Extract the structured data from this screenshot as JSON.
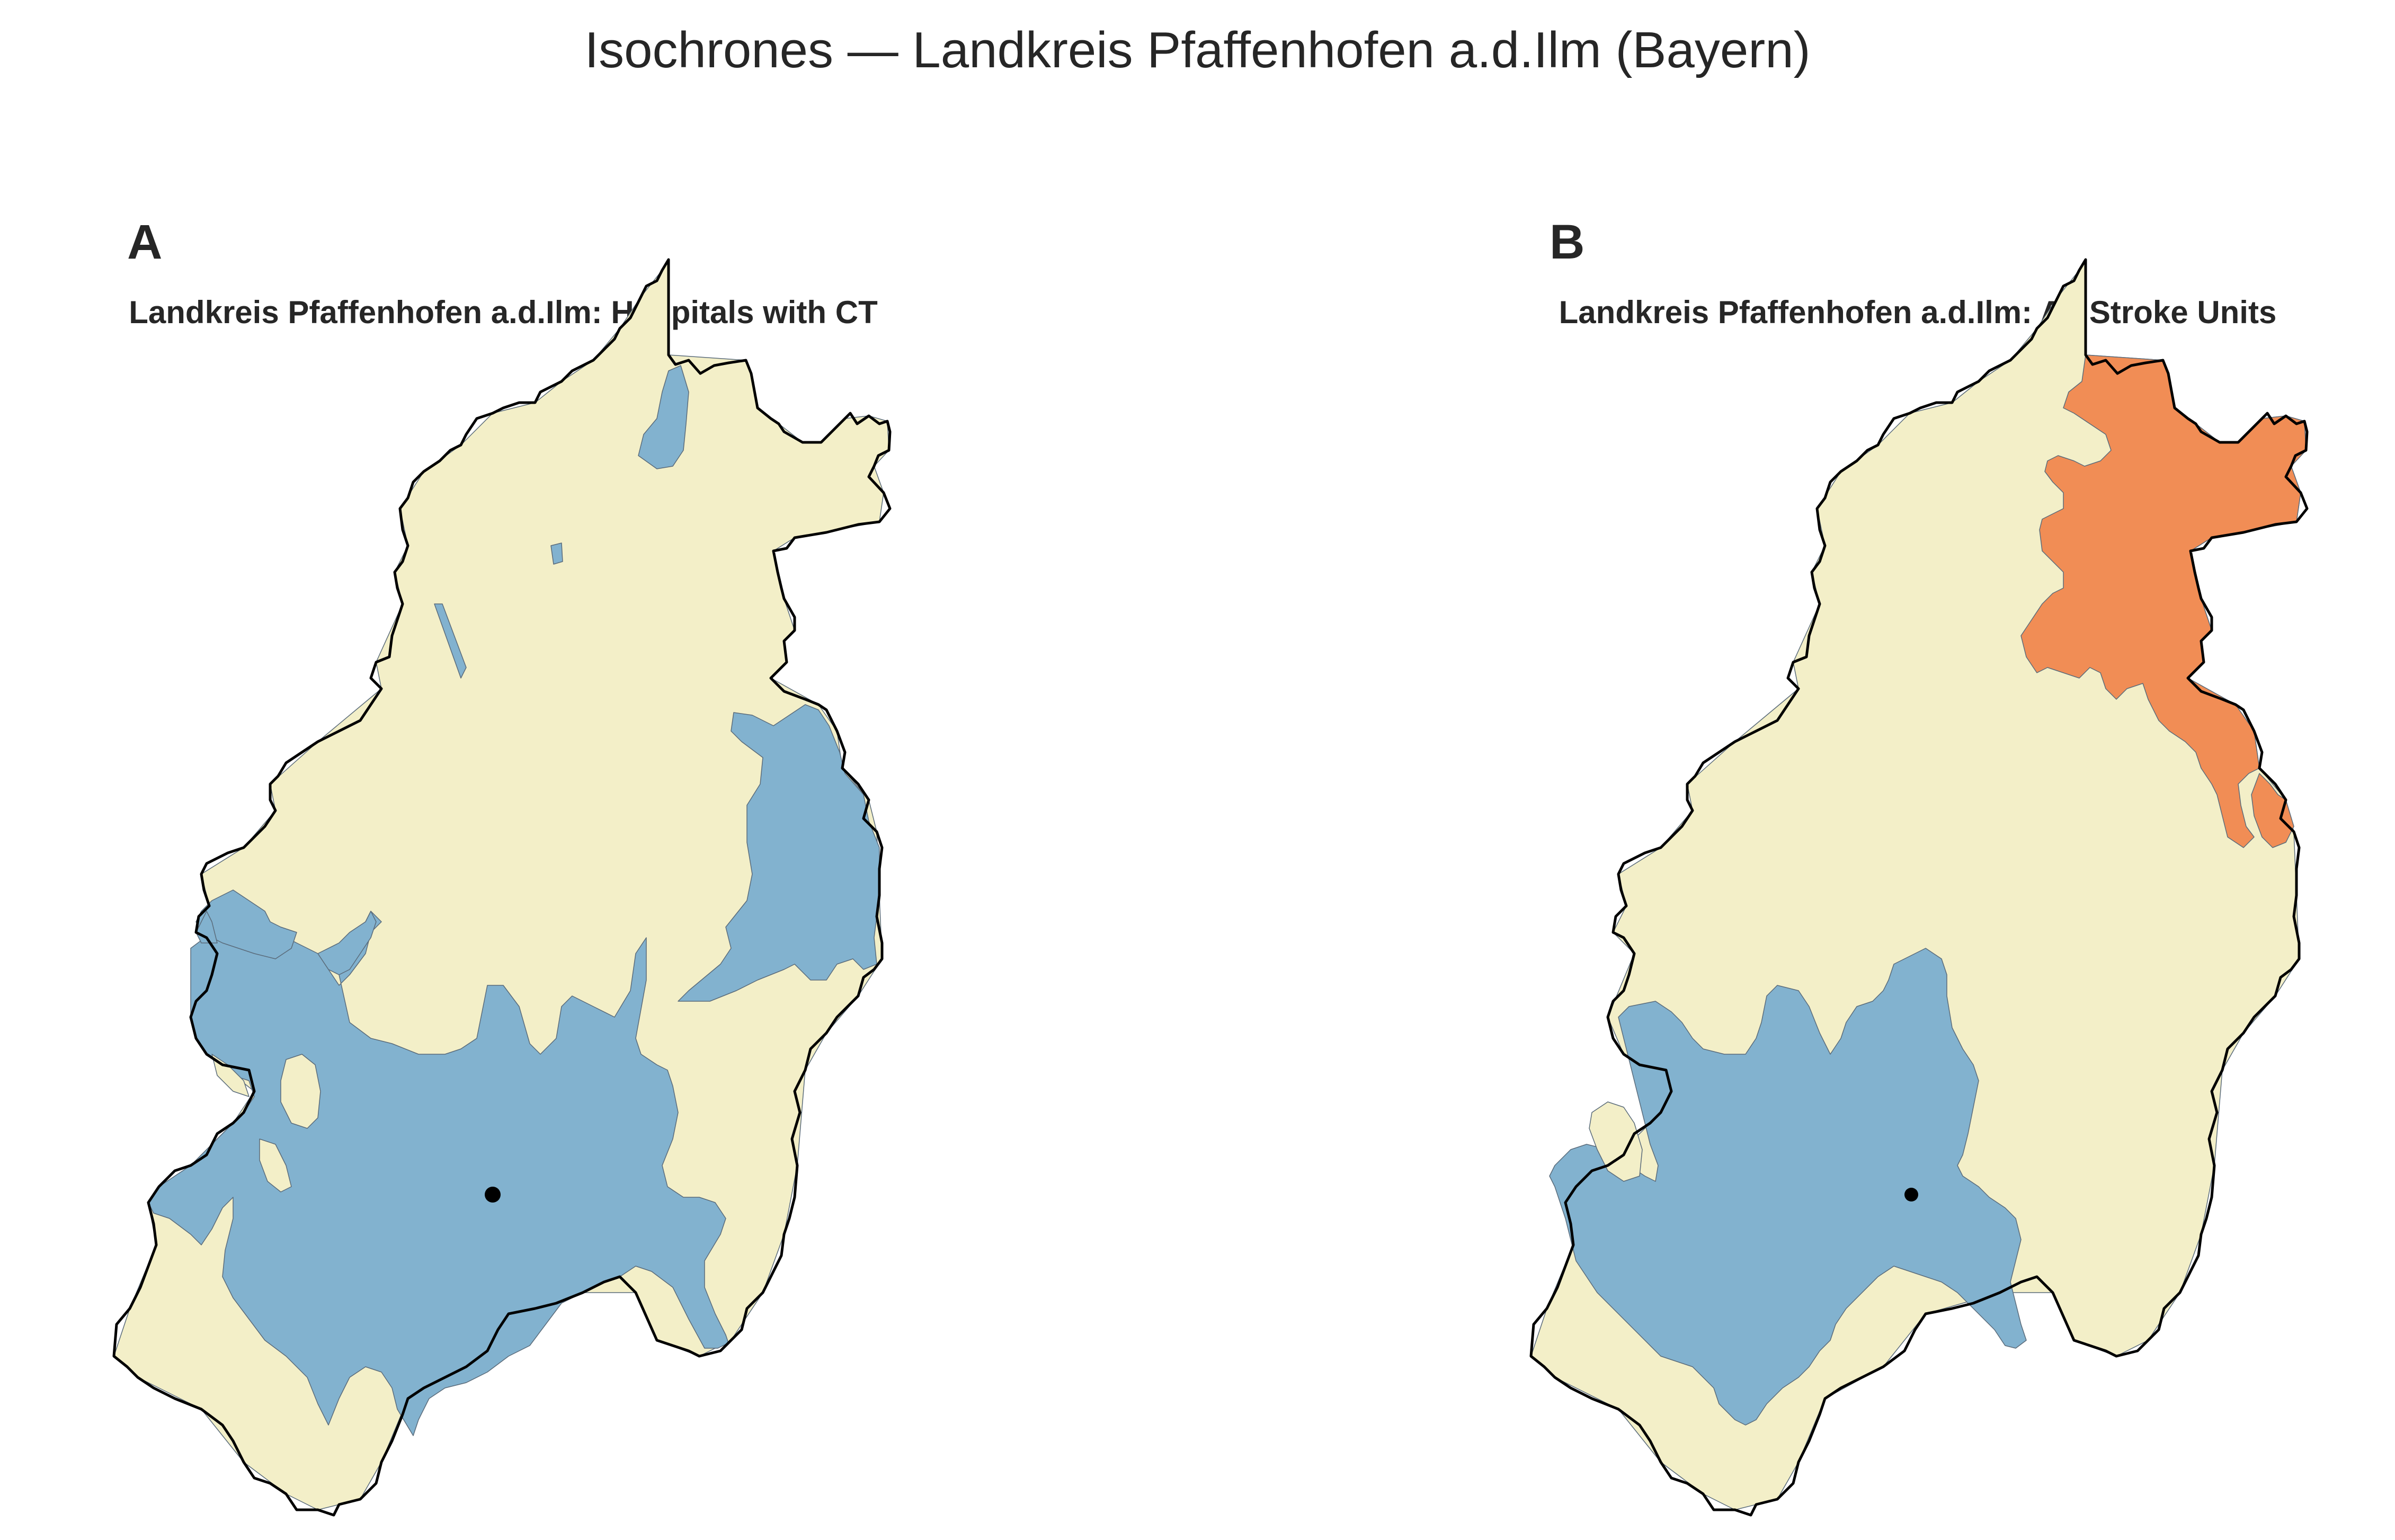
{
  "title": "Isochrones — Landkreis Pfaffenhofen a.d.Ilm (Bayern)",
  "colors": {
    "background_region": "#f3efc8",
    "reachable_blue": "#82b2cf",
    "reachable_orange": "#f18d55",
    "boundary": "#000000",
    "facility_marker": "#000000"
  },
  "panels": [
    {
      "letter": "A",
      "title": "Landkreis Pfaffenhofen a.d.Ilm: Hospitals with CT",
      "zones": [
        "blue"
      ],
      "facilities": 1
    },
    {
      "letter": "B",
      "title": "Landkreis Pfaffenhofen a.d.Ilm: All Stroke Units",
      "zones": [
        "blue",
        "orange"
      ],
      "facilities": 1
    }
  ]
}
